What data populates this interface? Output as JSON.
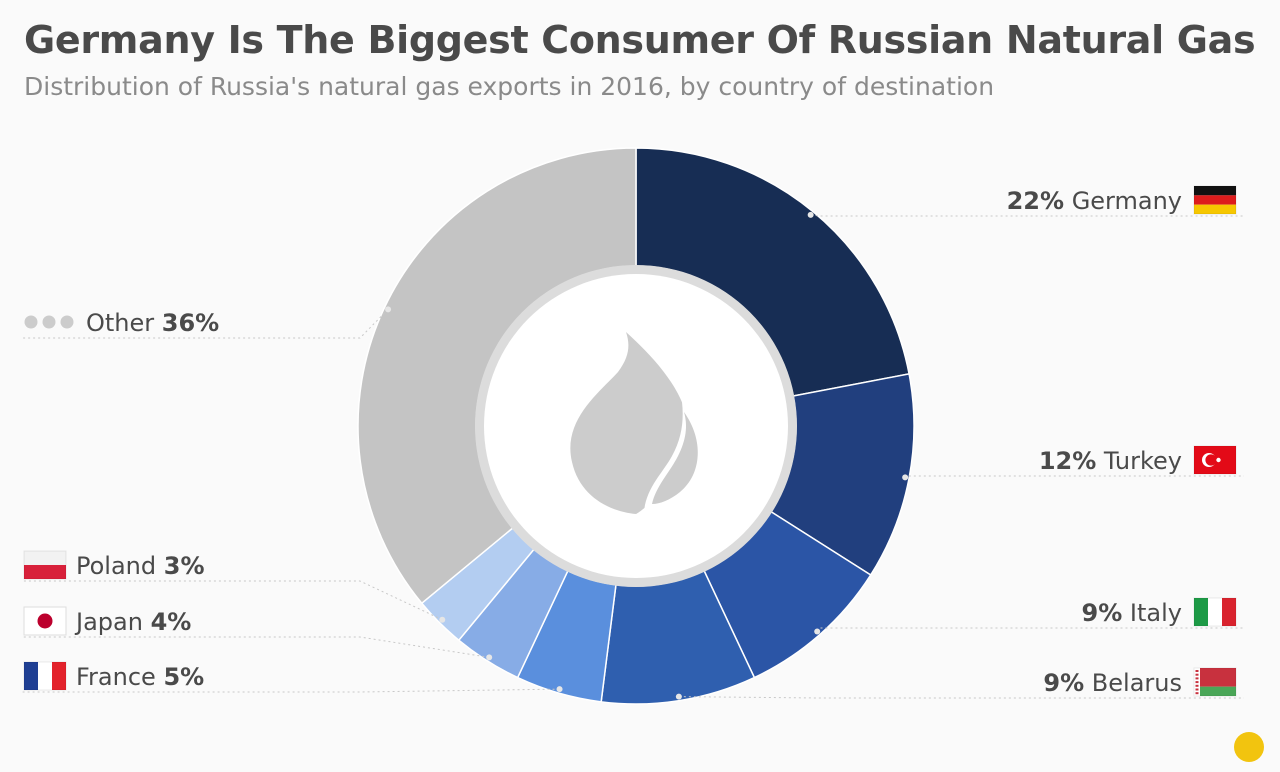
{
  "chart_data": {
    "type": "pie",
    "donut": true,
    "title": "Germany Is The Biggest Consumer Of Russian Natural Gas",
    "subtitle": "Distribution of Russia's natural gas exports in 2016, by country of destination",
    "unit": "%",
    "center_icon": "flame-icon",
    "slices": [
      {
        "label": "Germany",
        "value": 22,
        "color": "#172d54",
        "flag": "germany"
      },
      {
        "label": "Turkey",
        "value": 12,
        "color": "#213f7e",
        "flag": "turkey"
      },
      {
        "label": "Italy",
        "value": 9,
        "color": "#2b55a6",
        "flag": "italy"
      },
      {
        "label": "Belarus",
        "value": 9,
        "color": "#2f5faf",
        "flag": "belarus"
      },
      {
        "label": "France",
        "value": 5,
        "color": "#5a8fdd",
        "flag": "france"
      },
      {
        "label": "Japan",
        "value": 4,
        "color": "#87ace6",
        "flag": "japan"
      },
      {
        "label": "Poland",
        "value": 3,
        "color": "#b3cdf1",
        "flag": "poland"
      },
      {
        "label": "Other",
        "value": 36,
        "color": "#c4c4c4",
        "flag": "dots"
      }
    ]
  }
}
